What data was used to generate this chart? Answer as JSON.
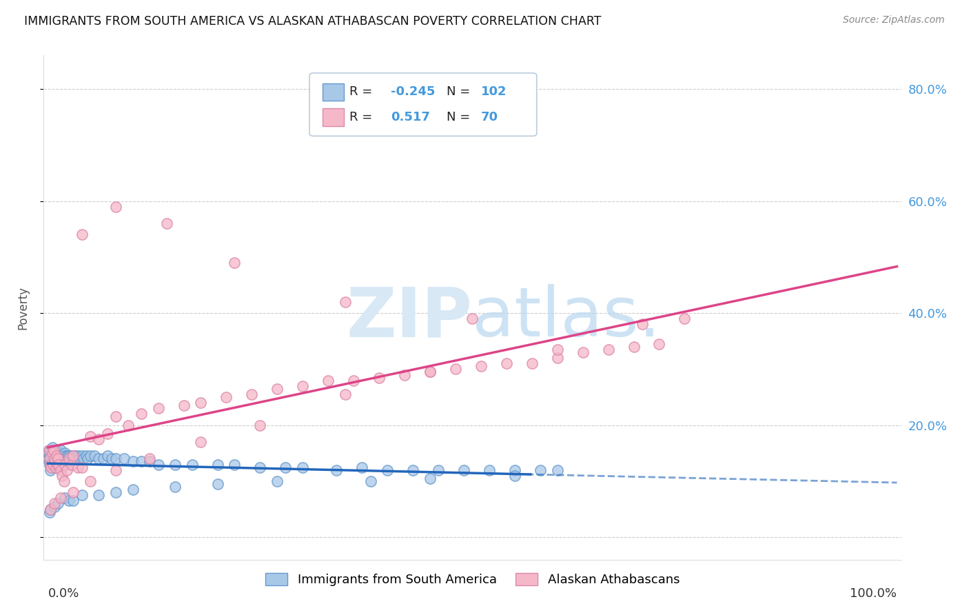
{
  "title": "IMMIGRANTS FROM SOUTH AMERICA VS ALASKAN ATHABASCAN POVERTY CORRELATION CHART",
  "source": "Source: ZipAtlas.com",
  "ylabel": "Poverty",
  "legend_label_blue": "Immigrants from South America",
  "legend_label_pink": "Alaskan Athabascans",
  "background_color": "#ffffff",
  "plot_bg_color": "#ffffff",
  "grid_color": "#cccccc",
  "blue_color": "#a8c8e8",
  "pink_color": "#f5b8c8",
  "blue_line_color": "#2266bb",
  "pink_line_color": "#dd4488",
  "blue_edge_color": "#6699cc",
  "pink_edge_color": "#dd88aa",
  "watermark_color": "#d8e8f5",
  "right_tick_color": "#4499dd",
  "ytick_values": [
    0.0,
    0.2,
    0.4,
    0.6,
    0.8
  ],
  "blue_x": [
    0.001,
    0.001,
    0.001,
    0.002,
    0.002,
    0.002,
    0.003,
    0.003,
    0.003,
    0.004,
    0.004,
    0.005,
    0.005,
    0.005,
    0.006,
    0.006,
    0.007,
    0.007,
    0.008,
    0.008,
    0.009,
    0.009,
    0.01,
    0.01,
    0.011,
    0.011,
    0.012,
    0.012,
    0.013,
    0.013,
    0.014,
    0.015,
    0.015,
    0.016,
    0.017,
    0.018,
    0.019,
    0.02,
    0.021,
    0.022,
    0.023,
    0.024,
    0.025,
    0.026,
    0.027,
    0.028,
    0.029,
    0.03,
    0.032,
    0.033,
    0.035,
    0.037,
    0.04,
    0.042,
    0.045,
    0.047,
    0.05,
    0.055,
    0.06,
    0.065,
    0.07,
    0.075,
    0.08,
    0.09,
    0.1,
    0.11,
    0.12,
    0.13,
    0.15,
    0.17,
    0.2,
    0.22,
    0.25,
    0.28,
    0.3,
    0.34,
    0.37,
    0.4,
    0.43,
    0.46,
    0.49,
    0.52,
    0.55,
    0.58,
    0.6,
    0.002,
    0.003,
    0.008,
    0.012,
    0.02,
    0.025,
    0.03,
    0.04,
    0.06,
    0.08,
    0.1,
    0.15,
    0.2,
    0.27,
    0.38,
    0.45,
    0.55
  ],
  "blue_y": [
    0.155,
    0.145,
    0.135,
    0.15,
    0.145,
    0.13,
    0.155,
    0.14,
    0.12,
    0.155,
    0.13,
    0.16,
    0.145,
    0.125,
    0.155,
    0.135,
    0.15,
    0.13,
    0.155,
    0.135,
    0.15,
    0.13,
    0.155,
    0.14,
    0.15,
    0.135,
    0.15,
    0.135,
    0.145,
    0.125,
    0.15,
    0.155,
    0.13,
    0.145,
    0.14,
    0.145,
    0.13,
    0.15,
    0.145,
    0.14,
    0.145,
    0.135,
    0.145,
    0.14,
    0.145,
    0.14,
    0.14,
    0.145,
    0.14,
    0.145,
    0.145,
    0.14,
    0.145,
    0.14,
    0.145,
    0.14,
    0.145,
    0.145,
    0.14,
    0.14,
    0.145,
    0.14,
    0.14,
    0.14,
    0.135,
    0.135,
    0.135,
    0.13,
    0.13,
    0.13,
    0.13,
    0.13,
    0.125,
    0.125,
    0.125,
    0.12,
    0.125,
    0.12,
    0.12,
    0.12,
    0.12,
    0.12,
    0.12,
    0.12,
    0.12,
    0.045,
    0.05,
    0.055,
    0.06,
    0.07,
    0.065,
    0.065,
    0.075,
    0.075,
    0.08,
    0.085,
    0.09,
    0.095,
    0.1,
    0.1,
    0.105,
    0.11
  ],
  "pink_x": [
    0.001,
    0.002,
    0.003,
    0.004,
    0.005,
    0.006,
    0.007,
    0.008,
    0.009,
    0.01,
    0.011,
    0.012,
    0.013,
    0.015,
    0.017,
    0.019,
    0.02,
    0.022,
    0.025,
    0.028,
    0.03,
    0.035,
    0.04,
    0.05,
    0.06,
    0.07,
    0.08,
    0.095,
    0.11,
    0.13,
    0.16,
    0.18,
    0.21,
    0.24,
    0.27,
    0.3,
    0.33,
    0.36,
    0.39,
    0.42,
    0.45,
    0.48,
    0.51,
    0.54,
    0.57,
    0.6,
    0.63,
    0.66,
    0.69,
    0.72,
    0.003,
    0.008,
    0.015,
    0.03,
    0.05,
    0.08,
    0.12,
    0.18,
    0.25,
    0.35,
    0.45,
    0.6,
    0.7,
    0.75,
    0.04,
    0.08,
    0.14,
    0.22,
    0.35,
    0.5
  ],
  "pink_y": [
    0.155,
    0.14,
    0.13,
    0.125,
    0.15,
    0.13,
    0.155,
    0.14,
    0.125,
    0.145,
    0.13,
    0.14,
    0.13,
    0.12,
    0.11,
    0.1,
    0.13,
    0.12,
    0.14,
    0.13,
    0.145,
    0.125,
    0.125,
    0.18,
    0.175,
    0.185,
    0.215,
    0.2,
    0.22,
    0.23,
    0.235,
    0.24,
    0.25,
    0.255,
    0.265,
    0.27,
    0.28,
    0.28,
    0.285,
    0.29,
    0.295,
    0.3,
    0.305,
    0.31,
    0.31,
    0.32,
    0.33,
    0.335,
    0.34,
    0.345,
    0.05,
    0.06,
    0.07,
    0.08,
    0.1,
    0.12,
    0.14,
    0.17,
    0.2,
    0.255,
    0.295,
    0.335,
    0.38,
    0.39,
    0.54,
    0.59,
    0.56,
    0.49,
    0.42,
    0.39
  ]
}
